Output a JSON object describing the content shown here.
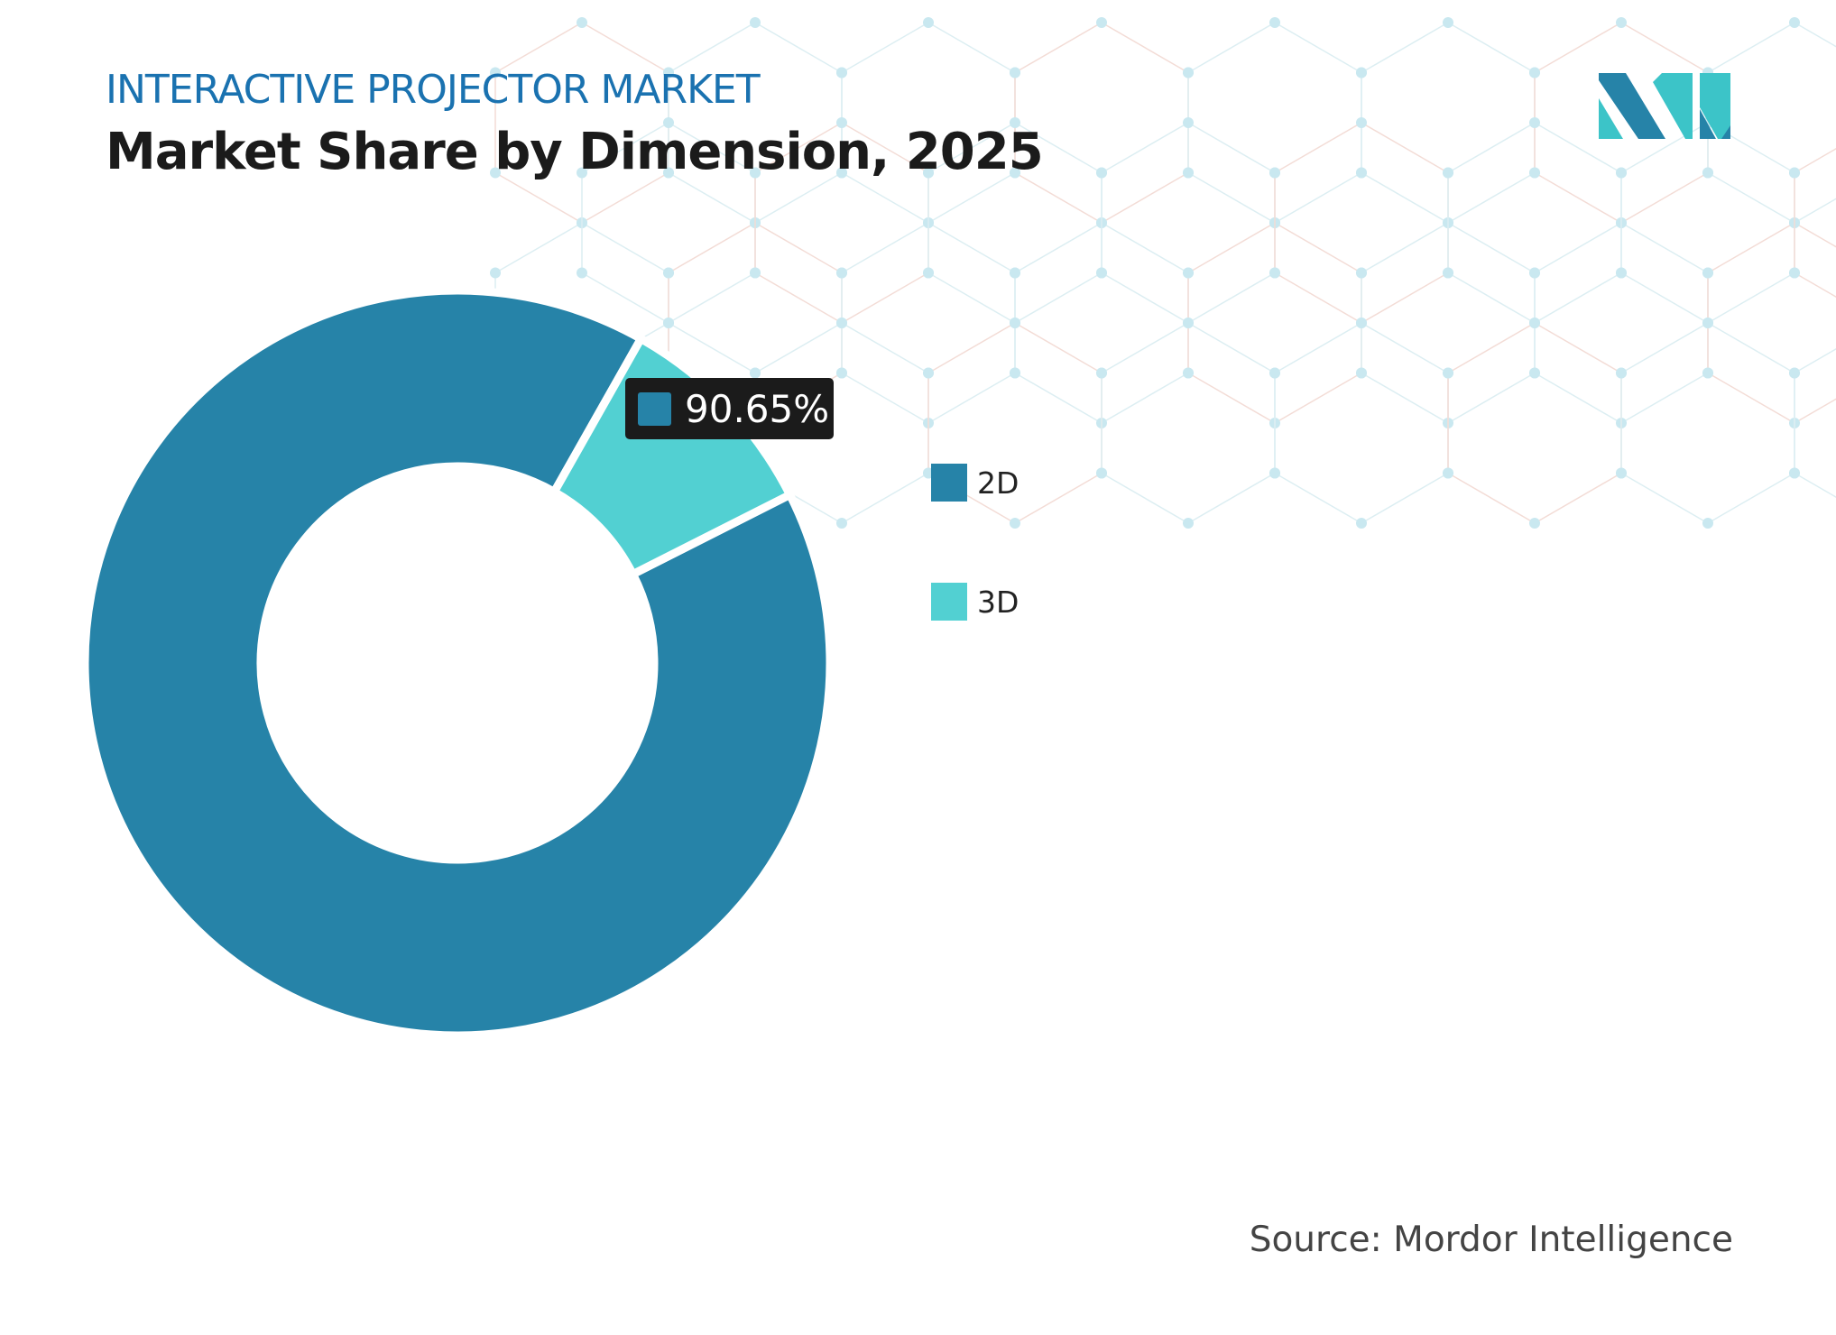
{
  "header": {
    "kicker": "INTERACTIVE PROJECTOR MARKET",
    "title": "Market Share by Dimension, 2025"
  },
  "chart_data": {
    "type": "pie",
    "variant": "donut",
    "categories": [
      "2D",
      "3D"
    ],
    "values": [
      90.65,
      9.35
    ],
    "colors": [
      "#2683a8",
      "#52d0d2"
    ],
    "data_labels": [
      {
        "category": "2D",
        "text": "90.65%"
      }
    ],
    "legend_placement": "right"
  },
  "tooltip": {
    "value": "90.65%"
  },
  "legend": [
    {
      "label": "2D",
      "color": "#2683a8"
    },
    {
      "label": "3D",
      "color": "#52d0d2"
    }
  ],
  "footer": {
    "source": "Source: Mordor Intelligence"
  },
  "logo": {
    "name": "mordor-intelligence-logo",
    "text": "MI",
    "colors": [
      "#2683a8",
      "#3cc4c8"
    ]
  }
}
